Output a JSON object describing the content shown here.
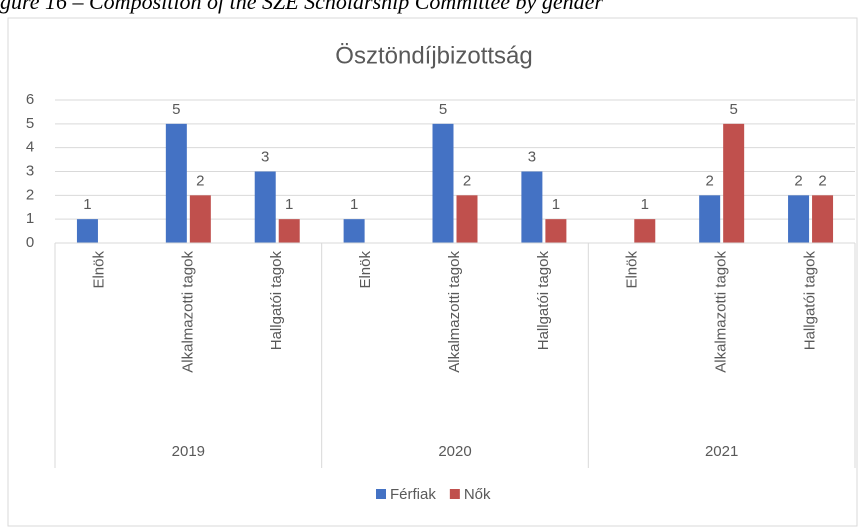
{
  "caption": "gure 16 – Composition of the SZE Scholarship Committee by gender",
  "chart_data": {
    "type": "bar",
    "title": "Ösztöndíjbizottság",
    "categories": [
      "Elnök",
      "Alkalmazotti tagok",
      "Hallgatói tagok",
      "Elnök",
      "Alkalmazotti tagok",
      "Hallgatói tagok",
      "Elnök",
      "Alkalmazotti tagok",
      "Hallgatói tagok"
    ],
    "groups": [
      "2019",
      "2020",
      "2021"
    ],
    "series": [
      {
        "name": "Férfiak",
        "color": "#4472c4",
        "values": [
          1,
          5,
          3,
          1,
          5,
          3,
          null,
          2,
          2
        ]
      },
      {
        "name": "Nők",
        "color": "#c0504d",
        "values": [
          null,
          2,
          1,
          null,
          2,
          1,
          1,
          5,
          2
        ]
      }
    ],
    "ylim": [
      0,
      6
    ],
    "yticks": [
      0,
      1,
      2,
      3,
      4,
      5,
      6
    ],
    "grid": true,
    "legend": "bottom"
  }
}
